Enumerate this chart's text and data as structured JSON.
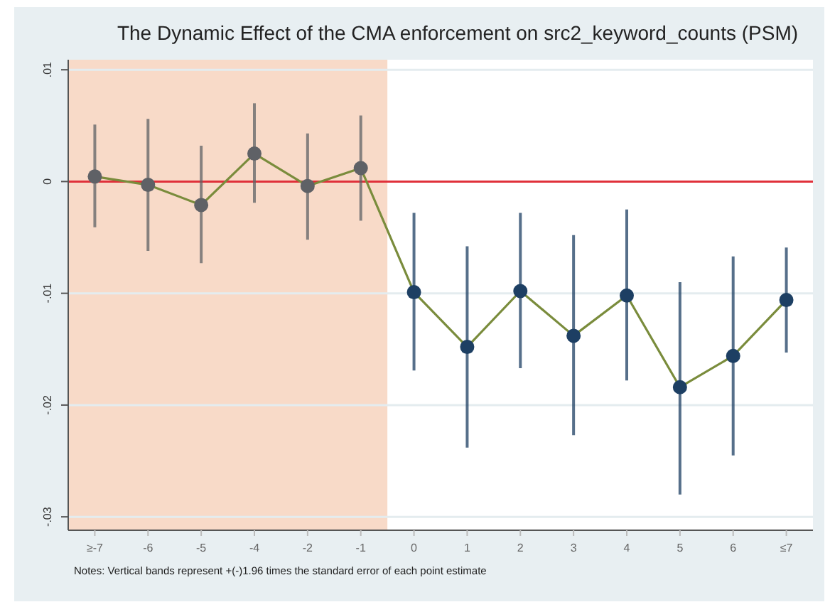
{
  "chart_data": {
    "type": "line",
    "title": "The Dynamic Effect of the CMA enforcement on src2_keyword_counts (PSM)",
    "categories": [
      "≥-7",
      "-6",
      "-5",
      "-4",
      "-2",
      "-1",
      "0",
      "1",
      "2",
      "3",
      "4",
      "5",
      "6",
      "≤7"
    ],
    "series": [
      {
        "color": "#7a8c3c",
        "colors": [
          "#5f6166",
          "#5f6166",
          "#5f6166",
          "#5f6166",
          "#5f6166",
          "#5f6166",
          "#1d3f63",
          "#1d3f63",
          "#1d3f63",
          "#1d3f63",
          "#1d3f63",
          "#1d3f63",
          "#1d3f63",
          "#1d3f63"
        ],
        "values": [
          0.00045,
          -0.0003,
          -0.0021,
          0.0025,
          -0.0004,
          0.0012,
          -0.0099,
          -0.0148,
          -0.0098,
          -0.0138,
          -0.0102,
          -0.0184,
          -0.0156,
          -0.0106
        ],
        "errors": [
          [
            -0.0041,
            0.0051
          ],
          [
            -0.0062,
            0.0056
          ],
          [
            -0.0073,
            0.0032
          ],
          [
            -0.0019,
            0.007
          ],
          [
            -0.0052,
            0.0043
          ],
          [
            -0.0035,
            0.0059
          ],
          [
            -0.0169,
            -0.0028
          ],
          [
            -0.0238,
            -0.0058
          ],
          [
            -0.0167,
            -0.0028
          ],
          [
            -0.0227,
            -0.0048
          ],
          [
            -0.0178,
            -0.0025
          ],
          [
            -0.028,
            -0.009
          ],
          [
            -0.0245,
            -0.0067
          ],
          [
            -0.0153,
            -0.0059
          ]
        ]
      }
    ],
    "marker": "circle",
    "ylim": [
      -0.0312,
      0.0109
    ],
    "yticks": [
      {
        "value": 0.01,
        "label": ".01"
      },
      0,
      {
        "value": -0.01,
        "label": "-.01"
      },
      {
        "value": -0.02,
        "label": "-.02"
      },
      {
        "value": -0.03,
        "label": "-.03"
      }
    ],
    "grid": "y",
    "ref_lines": [
      {
        "axis": "y",
        "value": 0,
        "color": "#e0303a"
      }
    ],
    "bands": [
      {
        "axis": "x",
        "from": "≥-7",
        "to": "-1",
        "color": "#f8dac8"
      }
    ],
    "annotations": [
      "Notes: Vertical bands represent +(-)1.96 times the standard error of each point estimate"
    ]
  }
}
